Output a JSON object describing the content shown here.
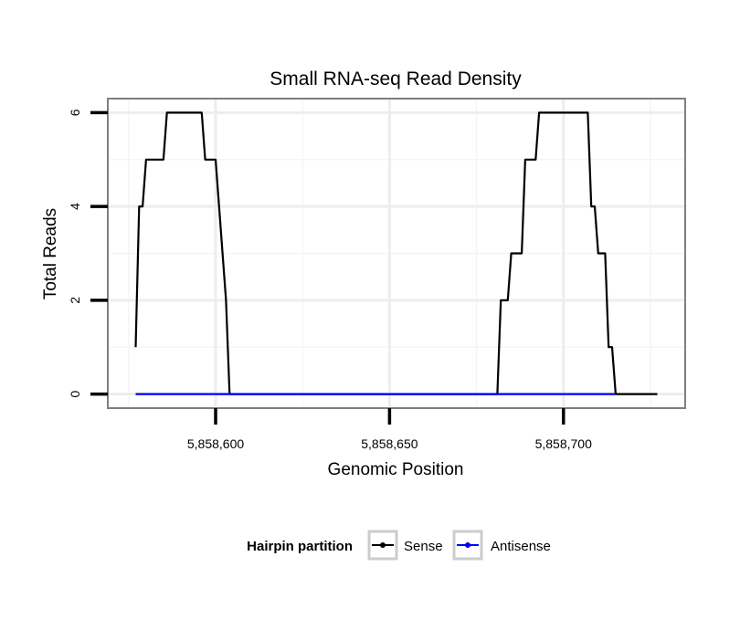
{
  "chart_data": {
    "type": "line",
    "title": "Small RNA-seq Read Density",
    "xlabel": "Genomic Position",
    "ylabel": "Total Reads",
    "xlim": [
      5858569,
      5858735
    ],
    "ylim": [
      -0.3,
      6.3
    ],
    "x_ticks": [
      5858600,
      5858650,
      5858700
    ],
    "x_tick_labels": [
      "5,858,600",
      "5,858,650",
      "5,858,700"
    ],
    "y_ticks": [
      0,
      2,
      4,
      6
    ],
    "y_tick_labels": [
      "0",
      "2",
      "4",
      "6"
    ],
    "grid": true,
    "legend": {
      "title": "Hairpin partition",
      "position": "bottom",
      "entries": [
        "Sense",
        "Antisense"
      ]
    },
    "series": [
      {
        "name": "Sense",
        "color": "#000000",
        "points": [
          [
            5858577,
            1
          ],
          [
            5858578,
            4
          ],
          [
            5858579,
            4
          ],
          [
            5858580,
            5
          ],
          [
            5858585,
            5
          ],
          [
            5858586,
            6
          ],
          [
            5858596,
            6
          ],
          [
            5858597,
            5
          ],
          [
            5858600,
            5
          ],
          [
            5858601,
            4
          ],
          [
            5858602,
            3
          ],
          [
            5858603,
            2
          ],
          [
            5858604,
            0
          ],
          [
            5858681,
            0
          ],
          [
            5858682,
            2
          ],
          [
            5858684,
            2
          ],
          [
            5858685,
            3
          ],
          [
            5858688,
            3
          ],
          [
            5858689,
            5
          ],
          [
            5858692,
            5
          ],
          [
            5858693,
            6
          ],
          [
            5858707,
            6
          ],
          [
            5858708,
            4
          ],
          [
            5858709,
            4
          ],
          [
            5858710,
            3
          ],
          [
            5858712,
            3
          ],
          [
            5858713,
            1
          ],
          [
            5858714,
            1
          ],
          [
            5858715,
            0
          ],
          [
            5858727,
            0
          ]
        ]
      },
      {
        "name": "Antisense",
        "color": "#0000ff",
        "points": [
          [
            5858577,
            0
          ],
          [
            5858715,
            0
          ]
        ]
      }
    ]
  }
}
